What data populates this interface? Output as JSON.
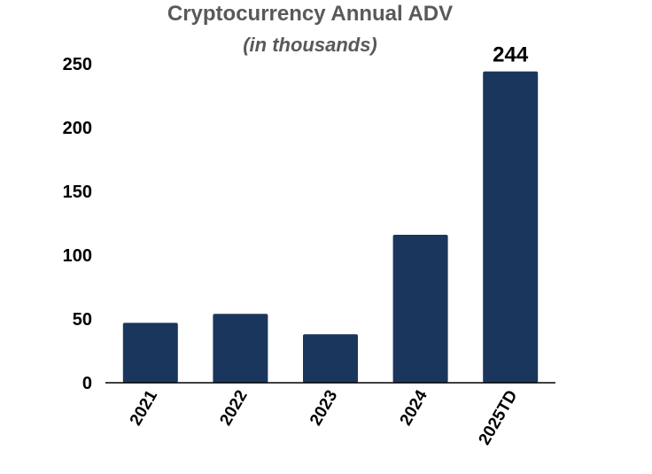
{
  "chart_data": {
    "type": "bar",
    "title": "Cryptocurrency Annual ADV",
    "subtitle": "(in thousands)",
    "categories": [
      "2021",
      "2022",
      "2023",
      "2024",
      "2025TD"
    ],
    "values": [
      47,
      54,
      38,
      116,
      244
    ],
    "data_labels": [
      {
        "index": 4,
        "text": "244"
      }
    ],
    "xlabel": "",
    "ylabel": "",
    "ylim": [
      0,
      250
    ],
    "yticks": [
      0,
      50,
      100,
      150,
      200,
      250
    ],
    "grid": false,
    "legend": "none",
    "bar_color": "#1b365d",
    "title_color": "#595959",
    "text_color": "#000000",
    "axis_color": "#000000"
  }
}
